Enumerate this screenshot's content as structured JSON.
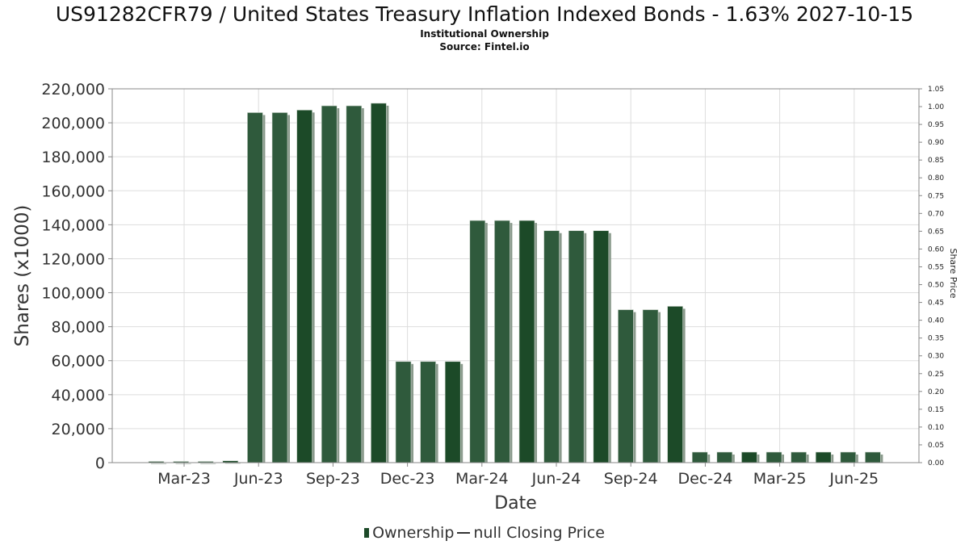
{
  "title": "US91282CFR79 / United States Treasury Inflation Indexed Bonds - 1.63% 2027-10-15",
  "subtitle": "Institutional Ownership",
  "source": "Source: Fintel.io",
  "legend": {
    "ownership_label": "Ownership",
    "price_label": "null Closing Price"
  },
  "colors": {
    "bar": "#2f5a3c",
    "bar_dark": "#1c4a28",
    "bar_shadow": "#8a9a8c",
    "grid": "#dddddd",
    "price_line": "#333333"
  },
  "chart_data": {
    "type": "bar",
    "xlabel": "Date",
    "ylabel": "Shares (x1000)",
    "y2label": "Share Price",
    "ylim": [
      0,
      220000
    ],
    "y2lim": [
      0,
      1.05
    ],
    "grid": true,
    "legend_position": "bottom",
    "x_ticks": [
      "Mar-23",
      "Jun-23",
      "Sep-23",
      "Dec-23",
      "Mar-24",
      "Jun-24",
      "Sep-24",
      "Dec-24",
      "Mar-25",
      "Jun-25"
    ],
    "y_ticks": [
      "0",
      "20,000",
      "40,000",
      "60,000",
      "80,000",
      "100,000",
      "120,000",
      "140,000",
      "160,000",
      "180,000",
      "200,000",
      "220,000"
    ],
    "y2_ticks": [
      "0.00",
      "0.05",
      "0.10",
      "0.15",
      "0.20",
      "0.25",
      "0.30",
      "0.35",
      "0.40",
      "0.45",
      "0.50",
      "0.55",
      "0.60",
      "0.65",
      "0.70",
      "0.75",
      "0.80",
      "0.85",
      "0.90",
      "0.95",
      "1.00",
      "1.05"
    ],
    "series": [
      {
        "name": "Ownership",
        "values": [
          300,
          300,
          300,
          1100,
          206000,
          206000,
          207500,
          210000,
          210000,
          211500,
          59500,
          59500,
          59500,
          142500,
          142500,
          142500,
          136500,
          136500,
          136500,
          90000,
          90000,
          92000,
          6200,
          6200,
          6200,
          6200,
          6200,
          6200,
          6200,
          6200
        ]
      }
    ]
  }
}
